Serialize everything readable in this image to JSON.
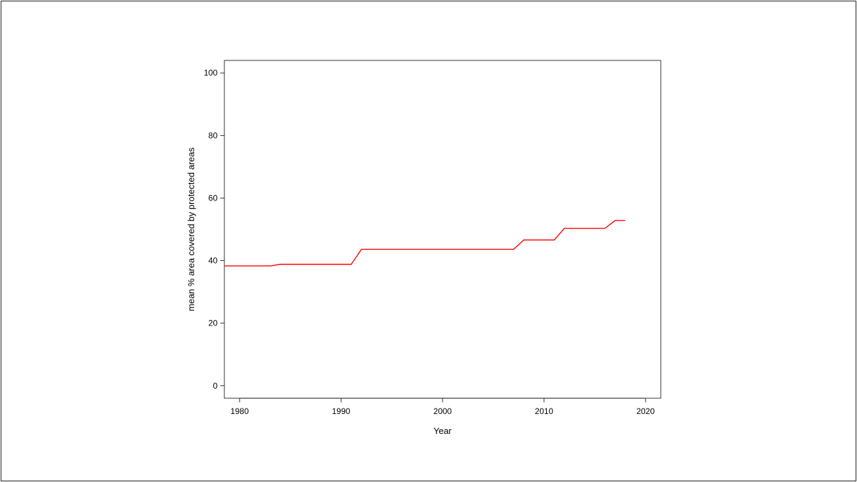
{
  "chart_data": {
    "type": "line",
    "title": "",
    "xlabel": "Year",
    "ylabel": "mean % area covered by protected areas",
    "xlim": [
      1978.5,
      2021.5
    ],
    "ylim": [
      -4,
      104
    ],
    "x_ticks": [
      1980,
      1990,
      2000,
      2010,
      2020
    ],
    "y_ticks": [
      0,
      20,
      40,
      60,
      80,
      100
    ],
    "grid": false,
    "line_color": "#ff0000",
    "series": [
      {
        "x": [
          1978.5,
          1983,
          1984,
          1991,
          1992,
          2007,
          2008,
          2011,
          2012,
          2016,
          2017,
          2018
        ],
        "values": [
          38.3,
          38.3,
          38.8,
          38.8,
          43.6,
          43.6,
          46.6,
          46.6,
          50.3,
          50.3,
          52.8,
          52.8
        ]
      }
    ]
  }
}
